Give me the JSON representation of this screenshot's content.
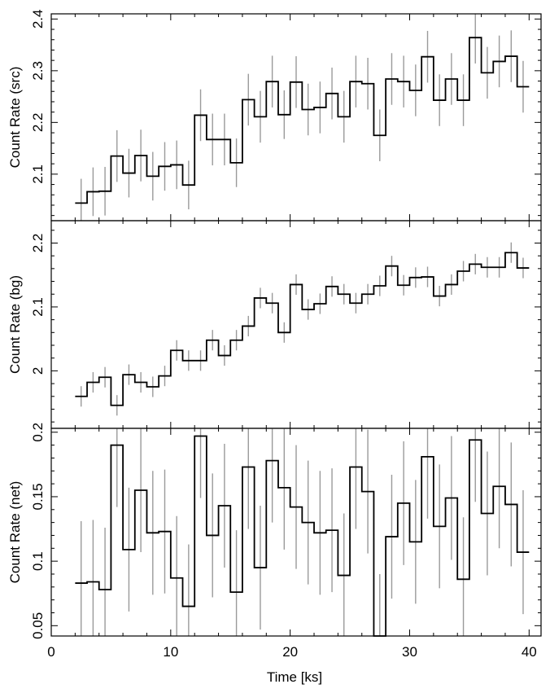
{
  "chart_data": [
    {
      "type": "line",
      "ylabel": "Count Rate (src)",
      "xlim": [
        0,
        41
      ],
      "ylim": [
        2.01,
        2.41
      ],
      "yticks": [
        "2.1",
        "2.2",
        "2.3",
        "2.4"
      ],
      "x": [
        2.5,
        3.5,
        4.5,
        5.5,
        6.5,
        7.5,
        8.5,
        9.5,
        10.5,
        11.5,
        12.5,
        13.5,
        14.5,
        15.5,
        16.5,
        17.5,
        18.5,
        19.5,
        20.5,
        21.5,
        22.5,
        23.5,
        24.5,
        25.5,
        26.5,
        27.5,
        28.5,
        29.5,
        30.5,
        31.5,
        32.5,
        33.5,
        34.5,
        35.5,
        36.5,
        37.5,
        38.5,
        39.5
      ],
      "values": [
        2.044,
        2.066,
        2.067,
        2.135,
        2.102,
        2.136,
        2.096,
        2.115,
        2.118,
        2.079,
        2.214,
        2.167,
        2.167,
        2.122,
        2.244,
        2.211,
        2.279,
        2.215,
        2.278,
        2.225,
        2.229,
        2.256,
        2.211,
        2.279,
        2.275,
        2.175,
        2.284,
        2.279,
        2.262,
        2.327,
        2.243,
        2.284,
        2.243,
        2.364,
        2.296,
        2.318,
        2.328,
        2.269
      ],
      "errors": [
        0.047,
        0.047,
        0.047,
        0.05,
        0.047,
        0.05,
        0.047,
        0.047,
        0.047,
        0.047,
        0.05,
        0.05,
        0.05,
        0.047,
        0.05,
        0.05,
        0.05,
        0.047,
        0.05,
        0.05,
        0.05,
        0.05,
        0.05,
        0.05,
        0.05,
        0.05,
        0.05,
        0.05,
        0.05,
        0.05,
        0.05,
        0.05,
        0.05,
        0.05,
        0.05,
        0.05,
        0.05,
        0.05
      ]
    },
    {
      "type": "line",
      "ylabel": "Count Rate (bg)",
      "xlim": [
        0,
        41
      ],
      "ylim": [
        1.91,
        2.235
      ],
      "yticks": [
        "2",
        "2.1",
        "2.2"
      ],
      "x": [
        2.5,
        3.5,
        4.5,
        5.5,
        6.5,
        7.5,
        8.5,
        9.5,
        10.5,
        11.5,
        12.5,
        13.5,
        14.5,
        15.5,
        16.5,
        17.5,
        18.5,
        19.5,
        20.5,
        21.5,
        22.5,
        23.5,
        24.5,
        25.5,
        26.5,
        27.5,
        28.5,
        29.5,
        30.5,
        31.5,
        32.5,
        33.5,
        34.5,
        35.5,
        36.5,
        37.5,
        38.5,
        39.5
      ],
      "values": [
        1.96,
        1.982,
        1.99,
        1.946,
        1.994,
        1.982,
        1.975,
        1.992,
        2.032,
        2.016,
        2.016,
        2.048,
        2.024,
        2.048,
        2.07,
        2.114,
        2.106,
        2.06,
        2.135,
        2.096,
        2.105,
        2.132,
        2.12,
        2.106,
        2.12,
        2.133,
        2.164,
        2.134,
        2.146,
        2.147,
        2.117,
        2.135,
        2.156,
        2.167,
        2.162,
        2.162,
        2.185,
        2.161
      ],
      "errors": [
        0.016,
        0.016,
        0.016,
        0.016,
        0.016,
        0.016,
        0.016,
        0.016,
        0.016,
        0.016,
        0.016,
        0.016,
        0.016,
        0.016,
        0.016,
        0.016,
        0.016,
        0.016,
        0.016,
        0.016,
        0.016,
        0.016,
        0.016,
        0.016,
        0.016,
        0.016,
        0.016,
        0.016,
        0.016,
        0.016,
        0.016,
        0.016,
        0.016,
        0.016,
        0.016,
        0.016,
        0.016,
        0.016
      ]
    },
    {
      "type": "line",
      "xlabel": "Time [ks]",
      "ylabel": "Count Rate (net)",
      "xlim": [
        0,
        41
      ],
      "ylim": [
        0.042,
        0.203
      ],
      "xticks": [
        "0",
        "10",
        "20",
        "30",
        "40"
      ],
      "yticks": [
        "0.05",
        "0.1",
        "0.15",
        "0.2"
      ],
      "x": [
        2.5,
        3.5,
        4.5,
        5.5,
        6.5,
        7.5,
        8.5,
        9.5,
        10.5,
        11.5,
        12.5,
        13.5,
        14.5,
        15.5,
        16.5,
        17.5,
        18.5,
        19.5,
        20.5,
        21.5,
        22.5,
        23.5,
        24.5,
        25.5,
        26.5,
        27.5,
        28.5,
        29.5,
        30.5,
        31.5,
        32.5,
        33.5,
        34.5,
        35.5,
        36.5,
        37.5,
        38.5,
        39.5
      ],
      "values": [
        0.083,
        0.084,
        0.078,
        0.19,
        0.109,
        0.155,
        0.122,
        0.123,
        0.087,
        0.065,
        0.197,
        0.12,
        0.143,
        0.076,
        0.173,
        0.095,
        0.178,
        0.157,
        0.142,
        0.13,
        0.122,
        0.124,
        0.089,
        0.173,
        0.154,
        0.042,
        0.119,
        0.145,
        0.115,
        0.181,
        0.127,
        0.149,
        0.086,
        0.194,
        0.137,
        0.158,
        0.144,
        0.107
      ],
      "errors": [
        0.048,
        0.048,
        0.048,
        0.048,
        0.048,
        0.048,
        0.048,
        0.048,
        0.048,
        0.048,
        0.048,
        0.048,
        0.048,
        0.048,
        0.048,
        0.048,
        0.048,
        0.048,
        0.048,
        0.048,
        0.048,
        0.048,
        0.048,
        0.048,
        0.048,
        0.048,
        0.048,
        0.048,
        0.048,
        0.048,
        0.048,
        0.048,
        0.048,
        0.048,
        0.048,
        0.048,
        0.048,
        0.048
      ]
    }
  ],
  "colors": {
    "step_line": "#000000",
    "error_bar": "#9a9a9a",
    "axes": "#000000"
  }
}
